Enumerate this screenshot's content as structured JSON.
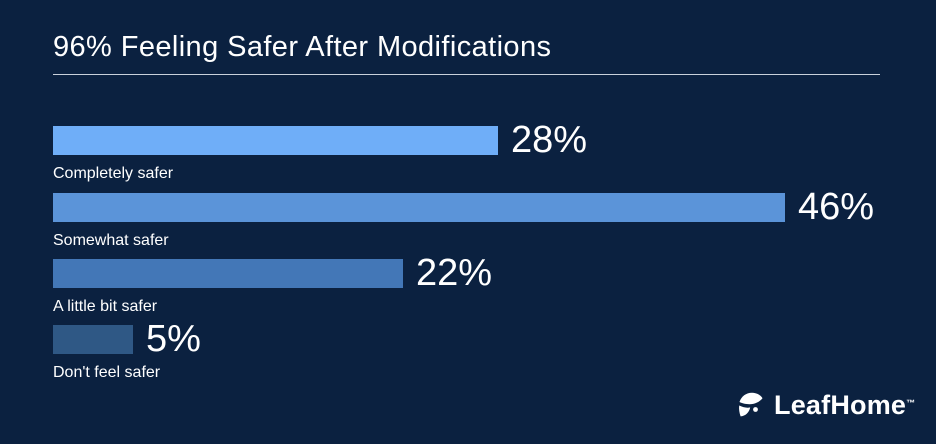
{
  "header": {
    "title": "96% Feeling Safer After Modifications"
  },
  "chart_data": {
    "type": "bar",
    "orientation": "horizontal",
    "title": "96% Feeling Safer After Modifications",
    "categories": [
      "Completely safer",
      "Somewhat safer",
      "A little bit safer",
      "Don't feel safer"
    ],
    "values": [
      28,
      46,
      22,
      5
    ],
    "bars": [
      {
        "label": "Completely safer",
        "value": 28,
        "value_label": "28%",
        "color": "#6FAEF8"
      },
      {
        "label": "Somewhat safer",
        "value": 46,
        "value_label": "46%",
        "color": "#5B94D9"
      },
      {
        "label": "A little bit safer",
        "value": 22,
        "value_label": "22%",
        "color": "#4377B7"
      },
      {
        "label": "Don't feel safer",
        "value": 5,
        "value_label": "5%",
        "color": "#2F5885"
      }
    ],
    "xlim": [
      0,
      52
    ],
    "grid": false,
    "legend": "none",
    "value_labels_position": "right-of-bar",
    "category_labels_position": "below-bar"
  },
  "footer": {
    "logo_text": "LeafHome",
    "trademark": "™"
  },
  "colors": {
    "background": "#0B2140",
    "text": "#FFFFFF",
    "divider": "#C9D1DB"
  }
}
